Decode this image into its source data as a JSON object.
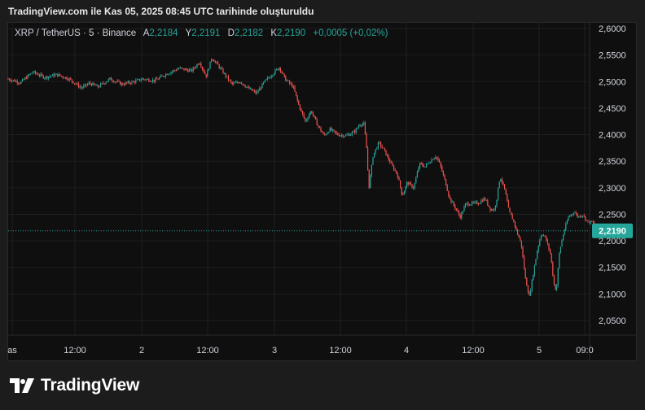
{
  "caption": "TradingView.com ile Kas 05, 2025 08:45 UTC tarihinde oluşturuldu",
  "legend": {
    "symbol": "XRP / TetherUS · 5 · Binance",
    "open_label": "A",
    "open": "2,2184",
    "high_label": "Y",
    "high": "2,2191",
    "low_label": "D",
    "low": "2,2182",
    "close_label": "K",
    "close": "2,2190",
    "change": "+0,0005 (+0,02%)"
  },
  "brand": {
    "name": "TradingView"
  },
  "colors": {
    "up": "#26a69a",
    "down": "#ef5350",
    "grid": "#1f1f1f",
    "price_tag": "#26a69a"
  },
  "chart_data": {
    "type": "candlestick",
    "y_ticks": [
      "2,6000",
      "2,5500",
      "2,5000",
      "2,4500",
      "2,4000",
      "2,3500",
      "2,3000",
      "2,2500",
      "2,2000",
      "2,1500",
      "2,1000",
      "2,0500"
    ],
    "ylim": [
      2.03,
      2.615
    ],
    "x_ticks": [
      "as",
      "12:00",
      "2",
      "12:00",
      "3",
      "12:00",
      "4",
      "12:00",
      "5",
      "09:0"
    ],
    "last_price": 2.219,
    "last_price_label": "2,2190",
    "path": [
      [
        0,
        2.505
      ],
      [
        15,
        2.498
      ],
      [
        30,
        2.518
      ],
      [
        45,
        2.508
      ],
      [
        60,
        2.513
      ],
      [
        75,
        2.505
      ],
      [
        90,
        2.488
      ],
      [
        100,
        2.497
      ],
      [
        110,
        2.49
      ],
      [
        125,
        2.505
      ],
      [
        140,
        2.495
      ],
      [
        155,
        2.5
      ],
      [
        165,
        2.505
      ],
      [
        180,
        2.502
      ],
      [
        195,
        2.515
      ],
      [
        210,
        2.525
      ],
      [
        225,
        2.52
      ],
      [
        235,
        2.537
      ],
      [
        243,
        2.51
      ],
      [
        250,
        2.545
      ],
      [
        258,
        2.53
      ],
      [
        265,
        2.515
      ],
      [
        275,
        2.495
      ],
      [
        285,
        2.5
      ],
      [
        295,
        2.487
      ],
      [
        305,
        2.478
      ],
      [
        315,
        2.5
      ],
      [
        325,
        2.515
      ],
      [
        333,
        2.527
      ],
      [
        340,
        2.505
      ],
      [
        350,
        2.49
      ],
      [
        357,
        2.455
      ],
      [
        365,
        2.425
      ],
      [
        372,
        2.445
      ],
      [
        380,
        2.418
      ],
      [
        388,
        2.398
      ],
      [
        395,
        2.41
      ],
      [
        405,
        2.4
      ],
      [
        415,
        2.398
      ],
      [
        425,
        2.405
      ],
      [
        432,
        2.42
      ],
      [
        437,
        2.42
      ],
      [
        440,
        2.375
      ],
      [
        443,
        2.3
      ],
      [
        448,
        2.36
      ],
      [
        455,
        2.385
      ],
      [
        462,
        2.37
      ],
      [
        470,
        2.345
      ],
      [
        478,
        2.325
      ],
      [
        484,
        2.285
      ],
      [
        490,
        2.31
      ],
      [
        498,
        2.3
      ],
      [
        505,
        2.345
      ],
      [
        512,
        2.34
      ],
      [
        518,
        2.35
      ],
      [
        525,
        2.36
      ],
      [
        530,
        2.345
      ],
      [
        537,
        2.31
      ],
      [
        542,
        2.28
      ],
      [
        548,
        2.265
      ],
      [
        555,
        2.245
      ],
      [
        562,
        2.27
      ],
      [
        570,
        2.27
      ],
      [
        578,
        2.272
      ],
      [
        585,
        2.28
      ],
      [
        592,
        2.26
      ],
      [
        597,
        2.258
      ],
      [
        600,
        2.28
      ],
      [
        604,
        2.322
      ],
      [
        610,
        2.295
      ],
      [
        615,
        2.255
      ],
      [
        620,
        2.24
      ],
      [
        625,
        2.215
      ],
      [
        630,
        2.195
      ],
      [
        635,
        2.13
      ],
      [
        640,
        2.095
      ],
      [
        645,
        2.14
      ],
      [
        650,
        2.185
      ],
      [
        655,
        2.215
      ],
      [
        660,
        2.205
      ],
      [
        666,
        2.175
      ],
      [
        670,
        2.12
      ],
      [
        673,
        2.105
      ],
      [
        677,
        2.18
      ],
      [
        682,
        2.215
      ],
      [
        688,
        2.245
      ],
      [
        695,
        2.255
      ],
      [
        700,
        2.245
      ],
      [
        705,
        2.25
      ],
      [
        712,
        2.235
      ],
      [
        718,
        2.235
      ],
      [
        721,
        2.219
      ]
    ]
  }
}
